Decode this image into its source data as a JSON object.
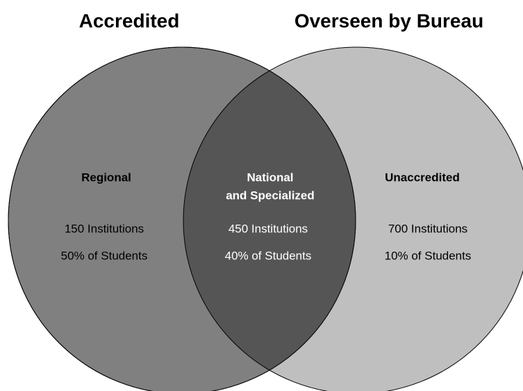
{
  "titles": [
    "Accredited",
    "Overseen by Bureau"
  ],
  "regions": [
    {
      "label_lines": [
        "Regional"
      ],
      "institutions": "150 Institutions",
      "students": "50% of Students"
    },
    {
      "label_lines": [
        "National",
        "and Specialized"
      ],
      "institutions": "450 Institutions",
      "students": "40% of Students"
    },
    {
      "label_lines": [
        "Unaccredited"
      ],
      "institutions": "700 Institutions",
      "students": "10% of Students"
    }
  ]
}
